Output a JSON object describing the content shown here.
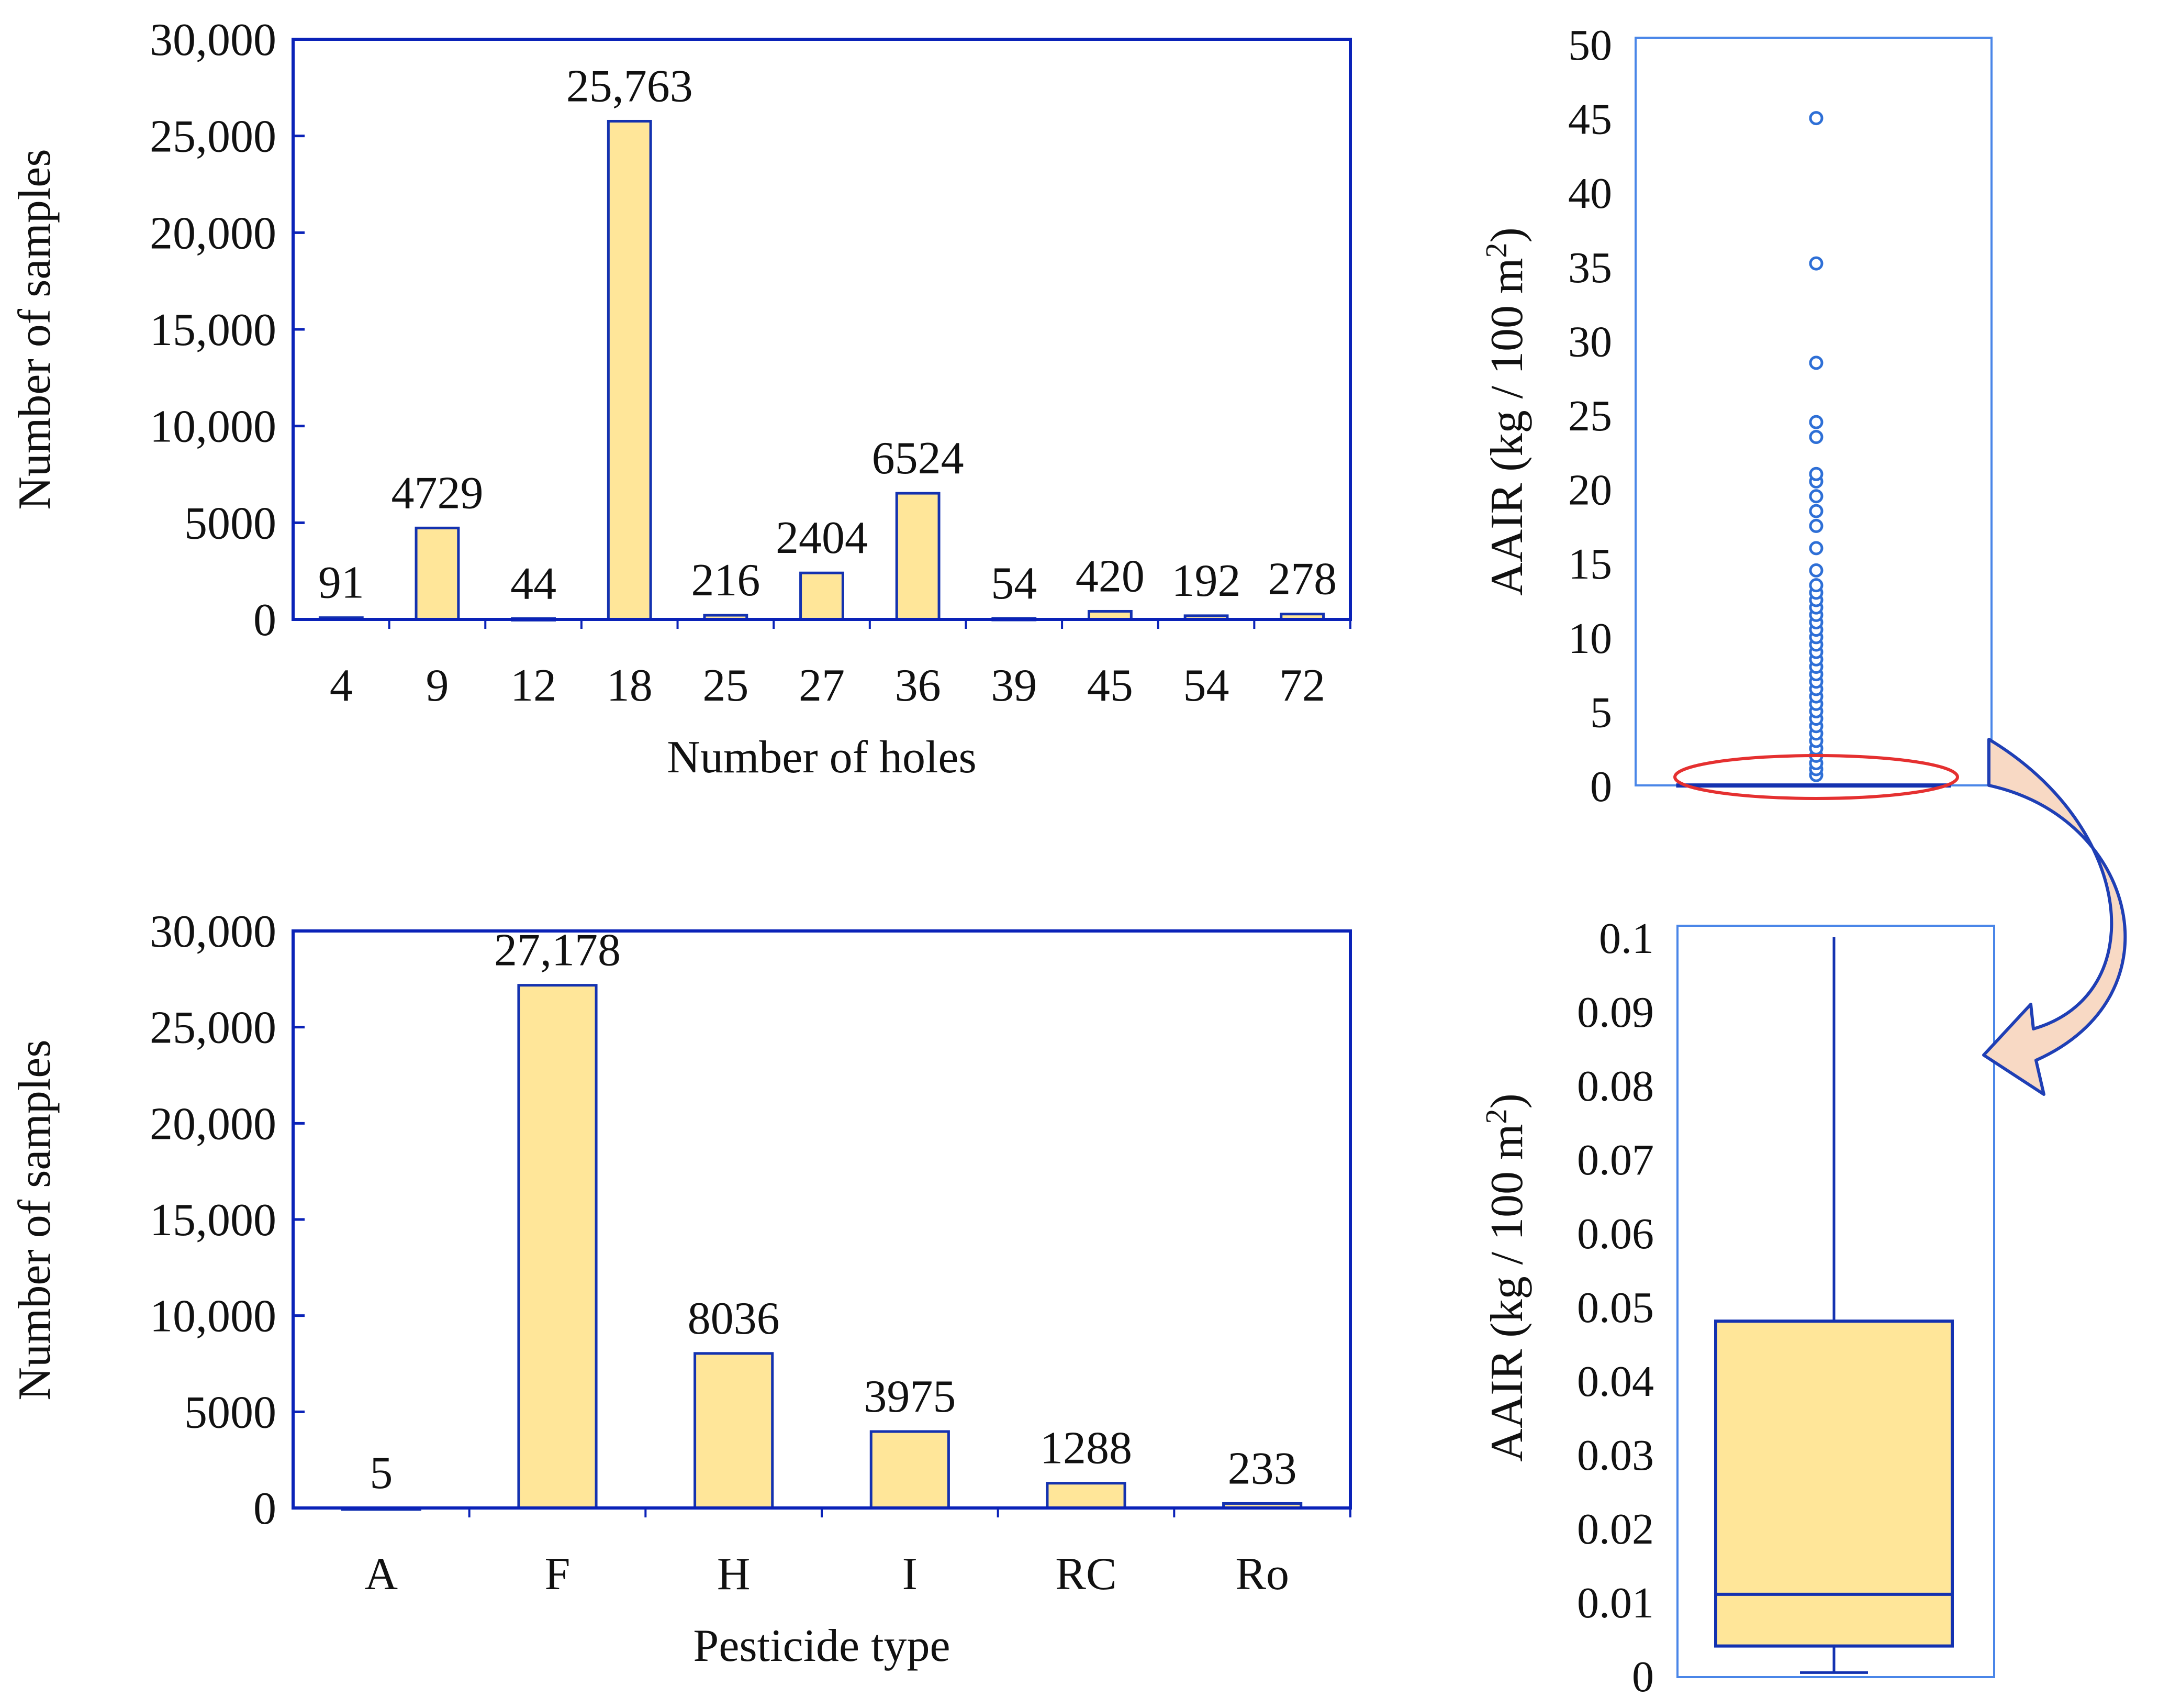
{
  "colors": {
    "axis": "#0A22B8",
    "bar_fill": "#FFE699",
    "bar_stroke": "#1432B0",
    "box_frame": "#4A86E8",
    "outlier": "#2E6FD6",
    "highlight": "#E53030",
    "arrow_fill": "#F8D9C4",
    "arrow_stroke": "#1F3FB5",
    "text": "#111111"
  },
  "chart_data": [
    {
      "type": "bar",
      "id": "holes",
      "categories": [
        "4",
        "9",
        "12",
        "18",
        "25",
        "27",
        "36",
        "39",
        "45",
        "54",
        "72"
      ],
      "values": [
        91,
        4729,
        44,
        25763,
        216,
        2404,
        6524,
        54,
        420,
        192,
        278
      ],
      "data_labels": [
        "91",
        "4729",
        "44",
        "25,763",
        "216",
        "2404",
        "6524",
        "54",
        "420",
        "192",
        "278"
      ],
      "xlabel": "Number of holes",
      "ylabel": "Number of samples",
      "ylim": [
        0,
        30000
      ],
      "yticks": [
        0,
        5000,
        10000,
        15000,
        20000,
        25000,
        30000
      ],
      "ytick_labels": [
        "0",
        "5000",
        "10,000",
        "15,000",
        "20,000",
        "25,000",
        "30,000"
      ]
    },
    {
      "type": "bar",
      "id": "pesticide",
      "categories": [
        "A",
        "F",
        "H",
        "I",
        "RC",
        "Ro"
      ],
      "values": [
        5,
        27178,
        8036,
        3975,
        1288,
        233
      ],
      "data_labels": [
        "5",
        "27,178",
        "8036",
        "3975",
        "1288",
        "233"
      ],
      "xlabel": "Pesticide type",
      "ylabel": "Number of samples",
      "ylim": [
        0,
        30000
      ],
      "yticks": [
        0,
        5000,
        10000,
        15000,
        20000,
        25000,
        30000
      ],
      "ytick_labels": [
        "0",
        "5000",
        "10,000",
        "15,000",
        "20,000",
        "25,000",
        "30,000"
      ]
    },
    {
      "type": "box",
      "id": "aair_full",
      "ylabel_prefix": "AAIR (kg / 100 m",
      "ylabel_sup": "2",
      "ylabel_suffix": ")",
      "ylim": [
        0,
        50
      ],
      "yticks": [
        0,
        5,
        10,
        15,
        20,
        25,
        30,
        35,
        40,
        45,
        50
      ],
      "ytick_labels": [
        "0",
        "5",
        "10",
        "15",
        "20",
        "25",
        "30",
        "35",
        "40",
        "45",
        "50"
      ],
      "box": {
        "q1": 0.004,
        "median": 0.011,
        "q3": 0.048,
        "whisker_low": 0.0004,
        "whisker_high": 0.1
      },
      "outliers": [
        0.7,
        1.1,
        1.5,
        2.0,
        2.5,
        3.0,
        3.5,
        4.0,
        4.5,
        5.0,
        5.5,
        6.0,
        6.5,
        7.0,
        7.5,
        8.0,
        8.5,
        9.0,
        9.5,
        10.0,
        10.5,
        11.0,
        11.5,
        12.0,
        12.5,
        13.0,
        13.5,
        14.5,
        16.0,
        17.5,
        18.5,
        19.5,
        20.5,
        21.0,
        23.5,
        24.5,
        28.5,
        35.2,
        45.0
      ]
    },
    {
      "type": "box",
      "id": "aair_zoom",
      "ylabel_prefix": "AAIR (kg / 100 m",
      "ylabel_sup": "2",
      "ylabel_suffix": ")",
      "ylim": [
        0,
        0.1
      ],
      "yticks": [
        0,
        0.01,
        0.02,
        0.03,
        0.04,
        0.05,
        0.06,
        0.07,
        0.08,
        0.09,
        0.1
      ],
      "ytick_labels": [
        "0",
        "0.01",
        "0.02",
        "0.03",
        "0.04",
        "0.05",
        "0.06",
        "0.07",
        "0.08",
        "0.09",
        "0.1"
      ],
      "box": {
        "q1": 0.004,
        "median": 0.011,
        "q3": 0.048,
        "whisker_low": 0.0004,
        "whisker_high": 0.1
      }
    }
  ]
}
